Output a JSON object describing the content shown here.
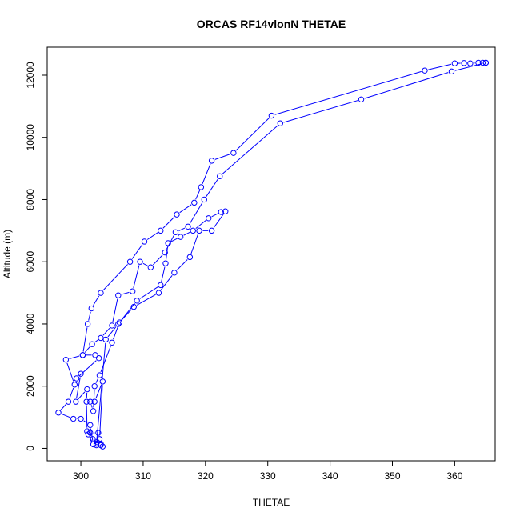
{
  "chart_data": {
    "type": "line",
    "title": "ORCAS RF14vlonN THETAE",
    "xlabel": "THETAE",
    "ylabel": "Altitude (m)",
    "xlim": [
      294.6,
      366.5
    ],
    "ylim": [
      -400,
      12900
    ],
    "xticks": [
      300,
      310,
      320,
      330,
      340,
      350,
      360
    ],
    "yticks": [
      0,
      2000,
      4000,
      6000,
      8000,
      10000,
      12000
    ],
    "grid": false,
    "color": "#0000ff",
    "marker": "open-circle",
    "series": [
      {
        "x": [
          365.0,
          364.5,
          363.8,
          362.5,
          361.5,
          360.0,
          355.2,
          330.6,
          324.5,
          321.0,
          319.3,
          318.2,
          315.4,
          312.8,
          310.2,
          307.9,
          303.2,
          301.7,
          301.1,
          300.3,
          297.6,
          299.0,
          298.0,
          296.4,
          298.8,
          300.0,
          301.5,
          302.0,
          301.2,
          301.5,
          302.8,
          302.5,
          303.2,
          303.5,
          303.2,
          302.6,
          303.0,
          303.5,
          302.2,
          301.5,
          302.0,
          302.2,
          303.0,
          305.0,
          306.2,
          308.5,
          312.5,
          315.0,
          317.5,
          319.0,
          321.0,
          323.2
        ],
        "y": [
          12400,
          12400,
          12400,
          12380,
          12390,
          12380,
          12150,
          10700,
          9500,
          9250,
          8400,
          7900,
          7520,
          7000,
          6650,
          6000,
          5000,
          4500,
          4000,
          3000,
          2850,
          2050,
          1500,
          1150,
          950,
          950,
          750,
          130,
          450,
          500,
          500,
          100,
          150,
          60,
          100,
          200,
          300,
          2150,
          1500,
          1500,
          1200,
          2000,
          2350,
          3400,
          4050,
          4550,
          5000,
          5650,
          6150,
          7000,
          7000,
          7620
        ]
      },
      {
        "x": [
          365.0,
          359.5,
          345.0,
          332.0,
          322.3,
          319.8,
          317.2,
          315.2,
          313.5,
          311.2,
          309.5,
          308.3,
          306.0,
          305.0,
          303.2,
          301.8,
          300.3,
          302.3,
          302.9,
          299.3,
          300.0,
          299.2,
          301.0,
          300.9,
          301.0,
          301.9,
          302.5,
          304.0,
          306.0,
          309.0,
          312.8,
          313.6,
          314.0,
          316.0,
          318.0,
          320.5,
          322.5
        ],
        "y": [
          12400,
          12120,
          11220,
          10450,
          8750,
          8000,
          7130,
          6950,
          6300,
          5820,
          6000,
          5050,
          4920,
          3950,
          3550,
          3350,
          3000,
          3000,
          2900,
          2250,
          2400,
          1500,
          1900,
          1500,
          550,
          300,
          150,
          3500,
          4000,
          4750,
          5250,
          5950,
          6600,
          6800,
          7000,
          7400,
          7600
        ]
      }
    ]
  }
}
